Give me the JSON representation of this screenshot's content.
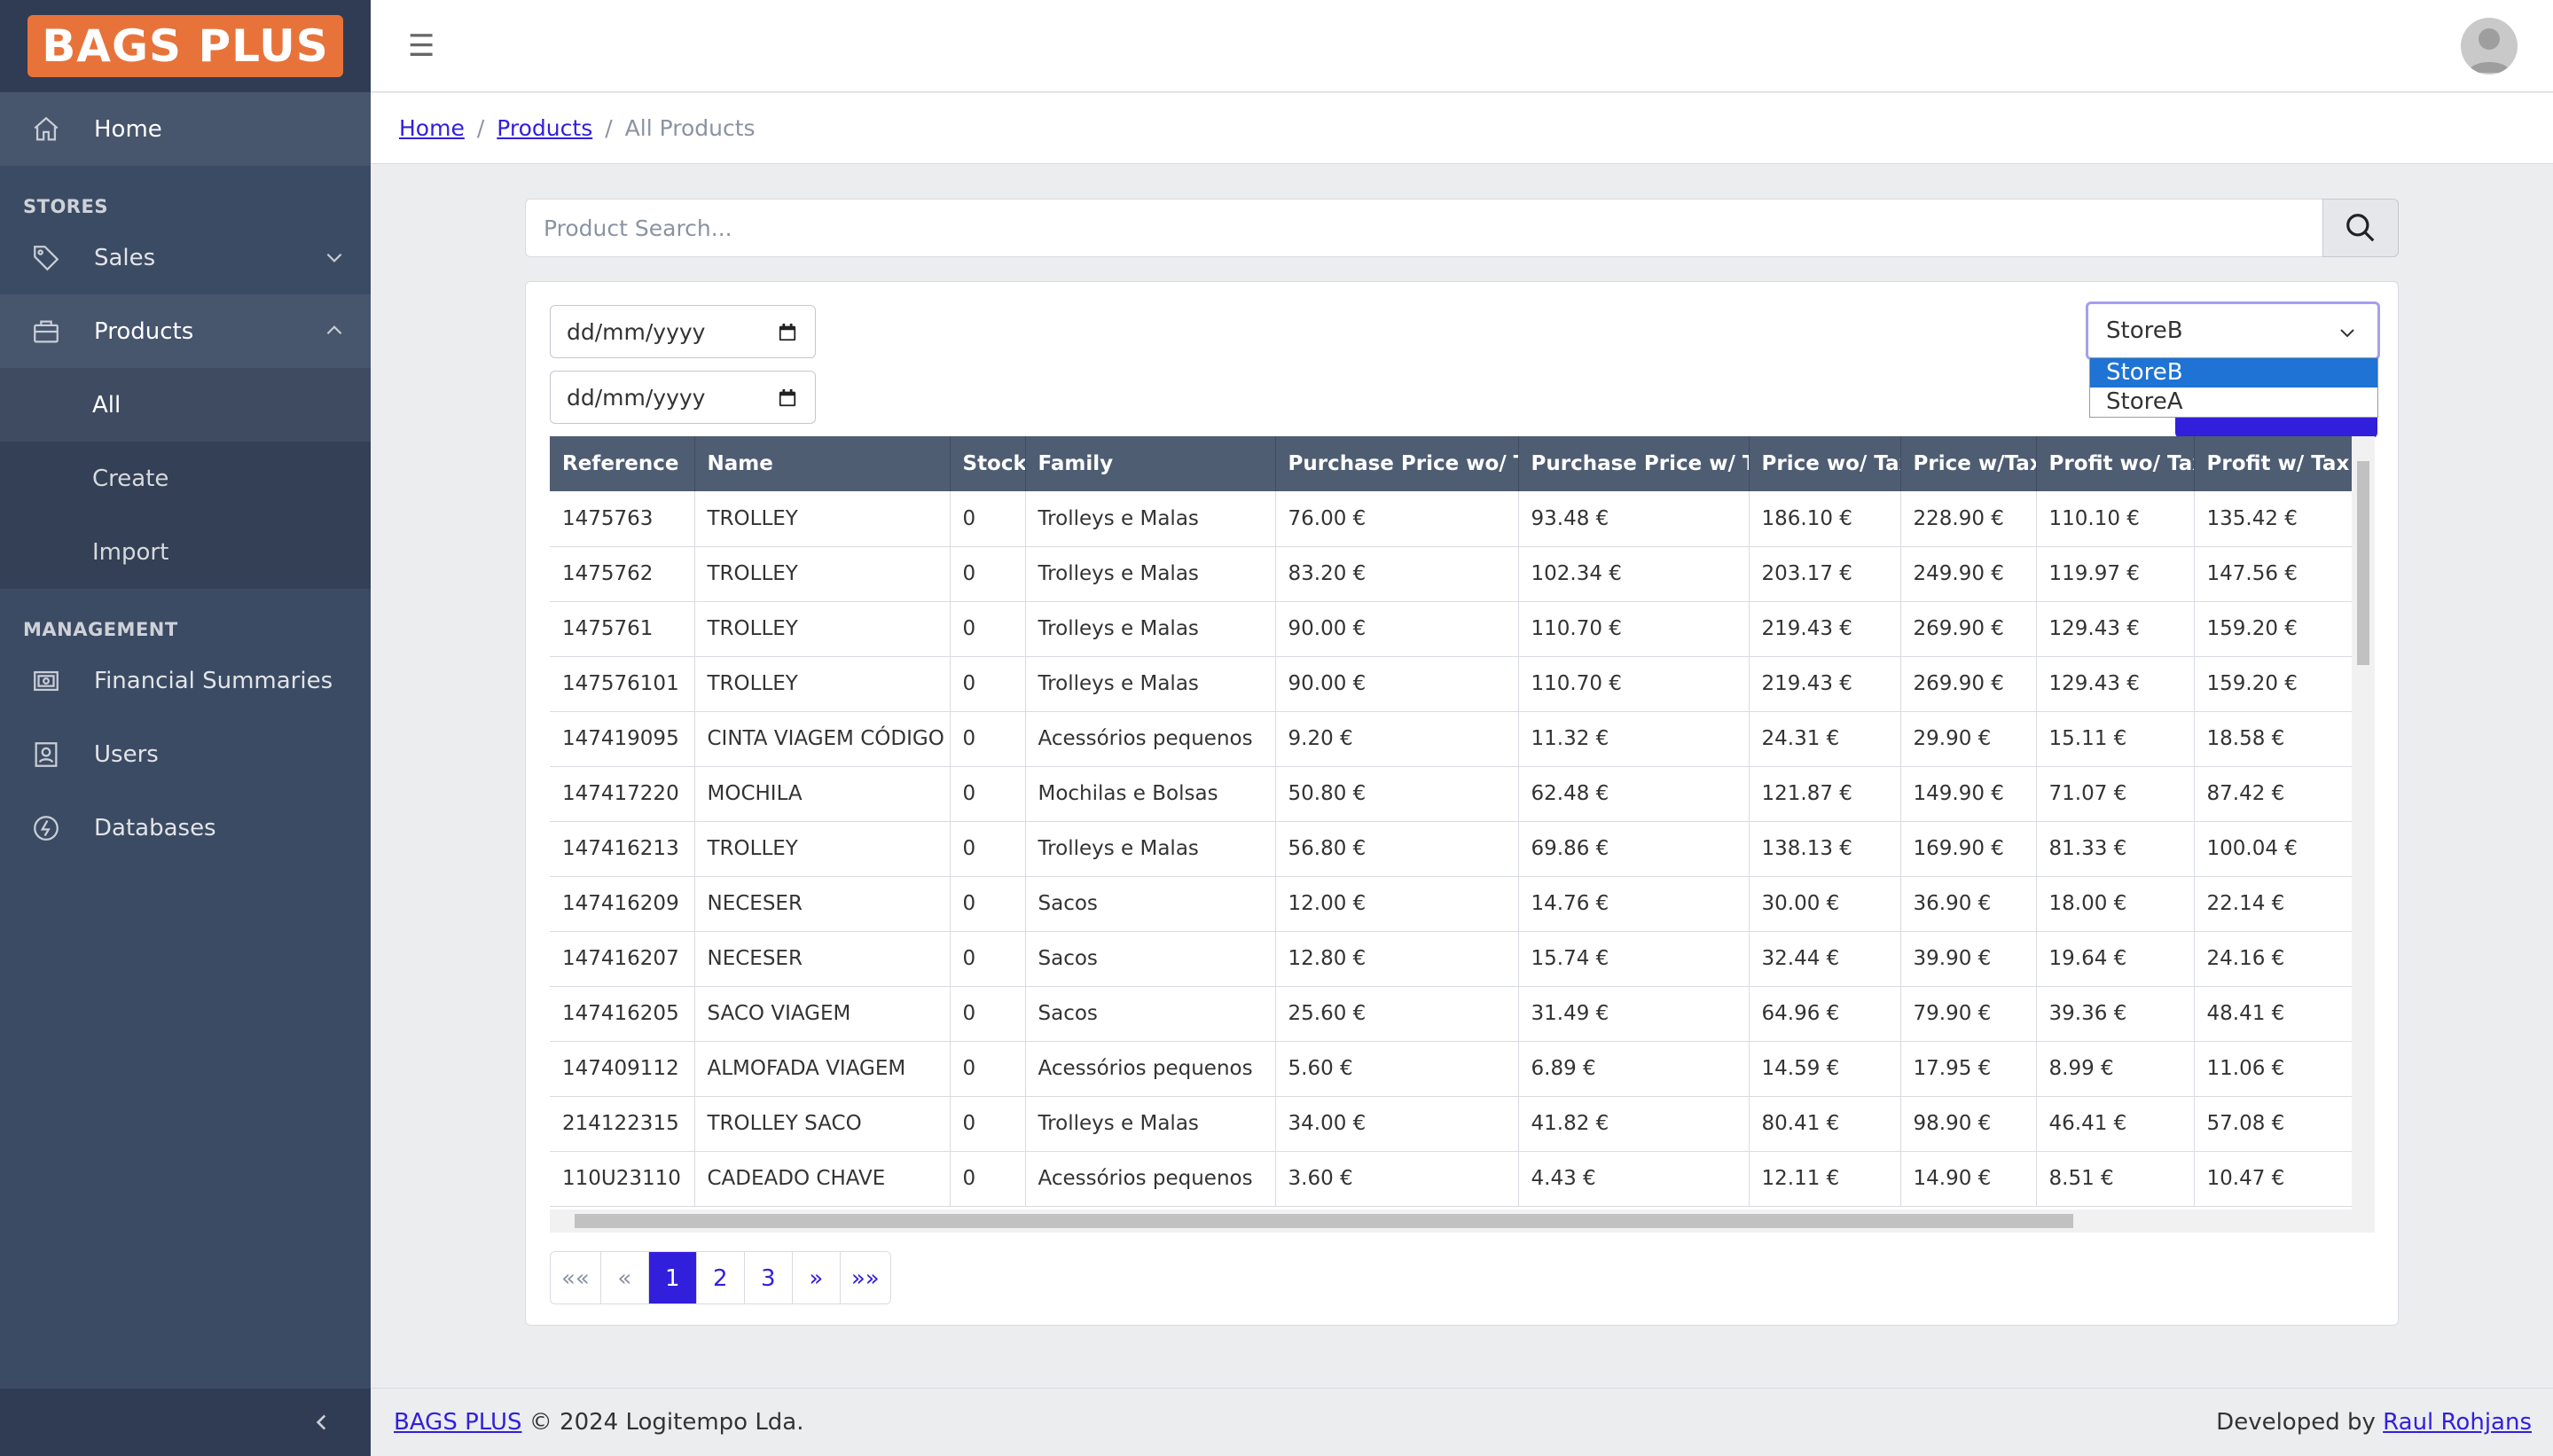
{
  "brand": {
    "logo_text": "BAGS PLUS",
    "logo_color": "#e8733a"
  },
  "sidebar": {
    "home": "Home",
    "stores_title": "STORES",
    "sales": "Sales",
    "products": "Products",
    "products_sub": [
      "All",
      "Create",
      "Import"
    ],
    "management_title": "MANAGEMENT",
    "financial": "Financial Summaries",
    "users": "Users",
    "databases": "Databases"
  },
  "breadcrumb": {
    "home": "Home",
    "products": "Products",
    "current": "All Products",
    "separator": "/"
  },
  "search": {
    "placeholder": "Product Search..."
  },
  "filters": {
    "date_from": "dd/mm/yyyy",
    "date_to": "dd/mm/yyyy",
    "store_selected": "StoreB",
    "store_options": [
      "StoreB",
      "StoreA"
    ]
  },
  "table": {
    "columns": [
      "Reference",
      "Name",
      "Stock",
      "Family",
      "Purchase Price wo/ Tax",
      "Purchase Price w/ Tax",
      "Price wo/ Tax",
      "Price w/Tax",
      "Profit wo/ Tax",
      "Profit w/ Tax"
    ],
    "rows": [
      [
        "1475763",
        "TROLLEY",
        "0",
        "Trolleys e Malas",
        "76.00 €",
        "93.48 €",
        "186.10 €",
        "228.90 €",
        "110.10 €",
        "135.42 €"
      ],
      [
        "1475762",
        "TROLLEY",
        "0",
        "Trolleys e Malas",
        "83.20 €",
        "102.34 €",
        "203.17 €",
        "249.90 €",
        "119.97 €",
        "147.56 €"
      ],
      [
        "1475761",
        "TROLLEY",
        "0",
        "Trolleys e Malas",
        "90.00 €",
        "110.70 €",
        "219.43 €",
        "269.90 €",
        "129.43 €",
        "159.20 €"
      ],
      [
        "147576101",
        "TROLLEY",
        "0",
        "Trolleys e Malas",
        "90.00 €",
        "110.70 €",
        "219.43 €",
        "269.90 €",
        "129.43 €",
        "159.20 €"
      ],
      [
        "147419095",
        "CINTA VIAGEM CÓDIGO",
        "0",
        "Acessórios pequenos",
        "9.20 €",
        "11.32 €",
        "24.31 €",
        "29.90 €",
        "15.11 €",
        "18.58 €"
      ],
      [
        "147417220",
        "MOCHILA",
        "0",
        "Mochilas e Bolsas",
        "50.80 €",
        "62.48 €",
        "121.87 €",
        "149.90 €",
        "71.07 €",
        "87.42 €"
      ],
      [
        "147416213",
        "TROLLEY",
        "0",
        "Trolleys e Malas",
        "56.80 €",
        "69.86 €",
        "138.13 €",
        "169.90 €",
        "81.33 €",
        "100.04 €"
      ],
      [
        "147416209",
        "NECESER",
        "0",
        "Sacos",
        "12.00 €",
        "14.76 €",
        "30.00 €",
        "36.90 €",
        "18.00 €",
        "22.14 €"
      ],
      [
        "147416207",
        "NECESER",
        "0",
        "Sacos",
        "12.80 €",
        "15.74 €",
        "32.44 €",
        "39.90 €",
        "19.64 €",
        "24.16 €"
      ],
      [
        "147416205",
        "SACO VIAGEM",
        "0",
        "Sacos",
        "25.60 €",
        "31.49 €",
        "64.96 €",
        "79.90 €",
        "39.36 €",
        "48.41 €"
      ],
      [
        "147409112",
        "ALMOFADA VIAGEM",
        "0",
        "Acessórios pequenos",
        "5.60 €",
        "6.89 €",
        "14.59 €",
        "17.95 €",
        "8.99 €",
        "11.06 €"
      ],
      [
        "214122315",
        "TROLLEY SACO",
        "0",
        "Trolleys e Malas",
        "34.00 €",
        "41.82 €",
        "80.41 €",
        "98.90 €",
        "46.41 €",
        "57.08 €"
      ],
      [
        "110U23110",
        "CADEADO CHAVE",
        "0",
        "Acessórios pequenos",
        "3.60 €",
        "4.43 €",
        "12.11 €",
        "14.90 €",
        "8.51 €",
        "10.47 €"
      ]
    ]
  },
  "pagination": {
    "first": "««",
    "prev": "«",
    "pages": [
      "1",
      "2",
      "3"
    ],
    "next": "»",
    "last": "»»",
    "current": "1"
  },
  "footer": {
    "brand_link": "BAGS PLUS",
    "copyright": "© 2024 Logitempo Lda.",
    "developed_by": "Developed by",
    "author": "Raul Rohjans"
  }
}
